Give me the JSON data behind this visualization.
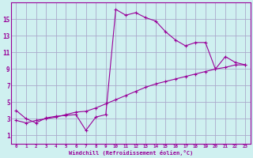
{
  "xlabel": "Windchill (Refroidissement éolien,°C)",
  "background_color": "#cff0f0",
  "grid_color": "#aaaacc",
  "line_color": "#990099",
  "curve1_x": [
    0,
    1,
    2,
    3,
    4,
    5,
    6,
    7,
    8,
    9,
    10,
    11,
    12,
    13,
    14,
    15,
    16,
    17,
    18,
    19,
    20,
    21,
    22,
    23
  ],
  "curve1_y": [
    4.0,
    3.0,
    2.5,
    3.1,
    3.3,
    3.4,
    3.5,
    1.6,
    3.2,
    3.5,
    16.2,
    15.5,
    15.8,
    15.2,
    14.8,
    13.5,
    12.5,
    11.8,
    12.2,
    12.2,
    9.0,
    10.5,
    9.8,
    9.5
  ],
  "curve2_x": [
    0,
    1,
    2,
    3,
    4,
    5,
    6,
    7,
    8,
    9,
    10,
    11,
    12,
    13,
    14,
    15,
    16,
    17,
    18,
    19,
    20,
    21,
    22,
    23
  ],
  "curve2_y": [
    2.8,
    2.5,
    2.8,
    3.0,
    3.2,
    3.5,
    3.8,
    3.9,
    4.3,
    4.8,
    5.3,
    5.8,
    6.3,
    6.8,
    7.2,
    7.5,
    7.8,
    8.1,
    8.4,
    8.7,
    9.0,
    9.2,
    9.5,
    9.5
  ],
  "ylim": [
    0,
    17
  ],
  "yticks": [
    1,
    3,
    5,
    7,
    9,
    11,
    13,
    15
  ],
  "xlim": [
    -0.5,
    23.5
  ],
  "xticks": [
    0,
    1,
    2,
    3,
    4,
    5,
    6,
    7,
    8,
    9,
    10,
    11,
    12,
    13,
    14,
    15,
    16,
    17,
    18,
    19,
    20,
    21,
    22,
    23
  ]
}
